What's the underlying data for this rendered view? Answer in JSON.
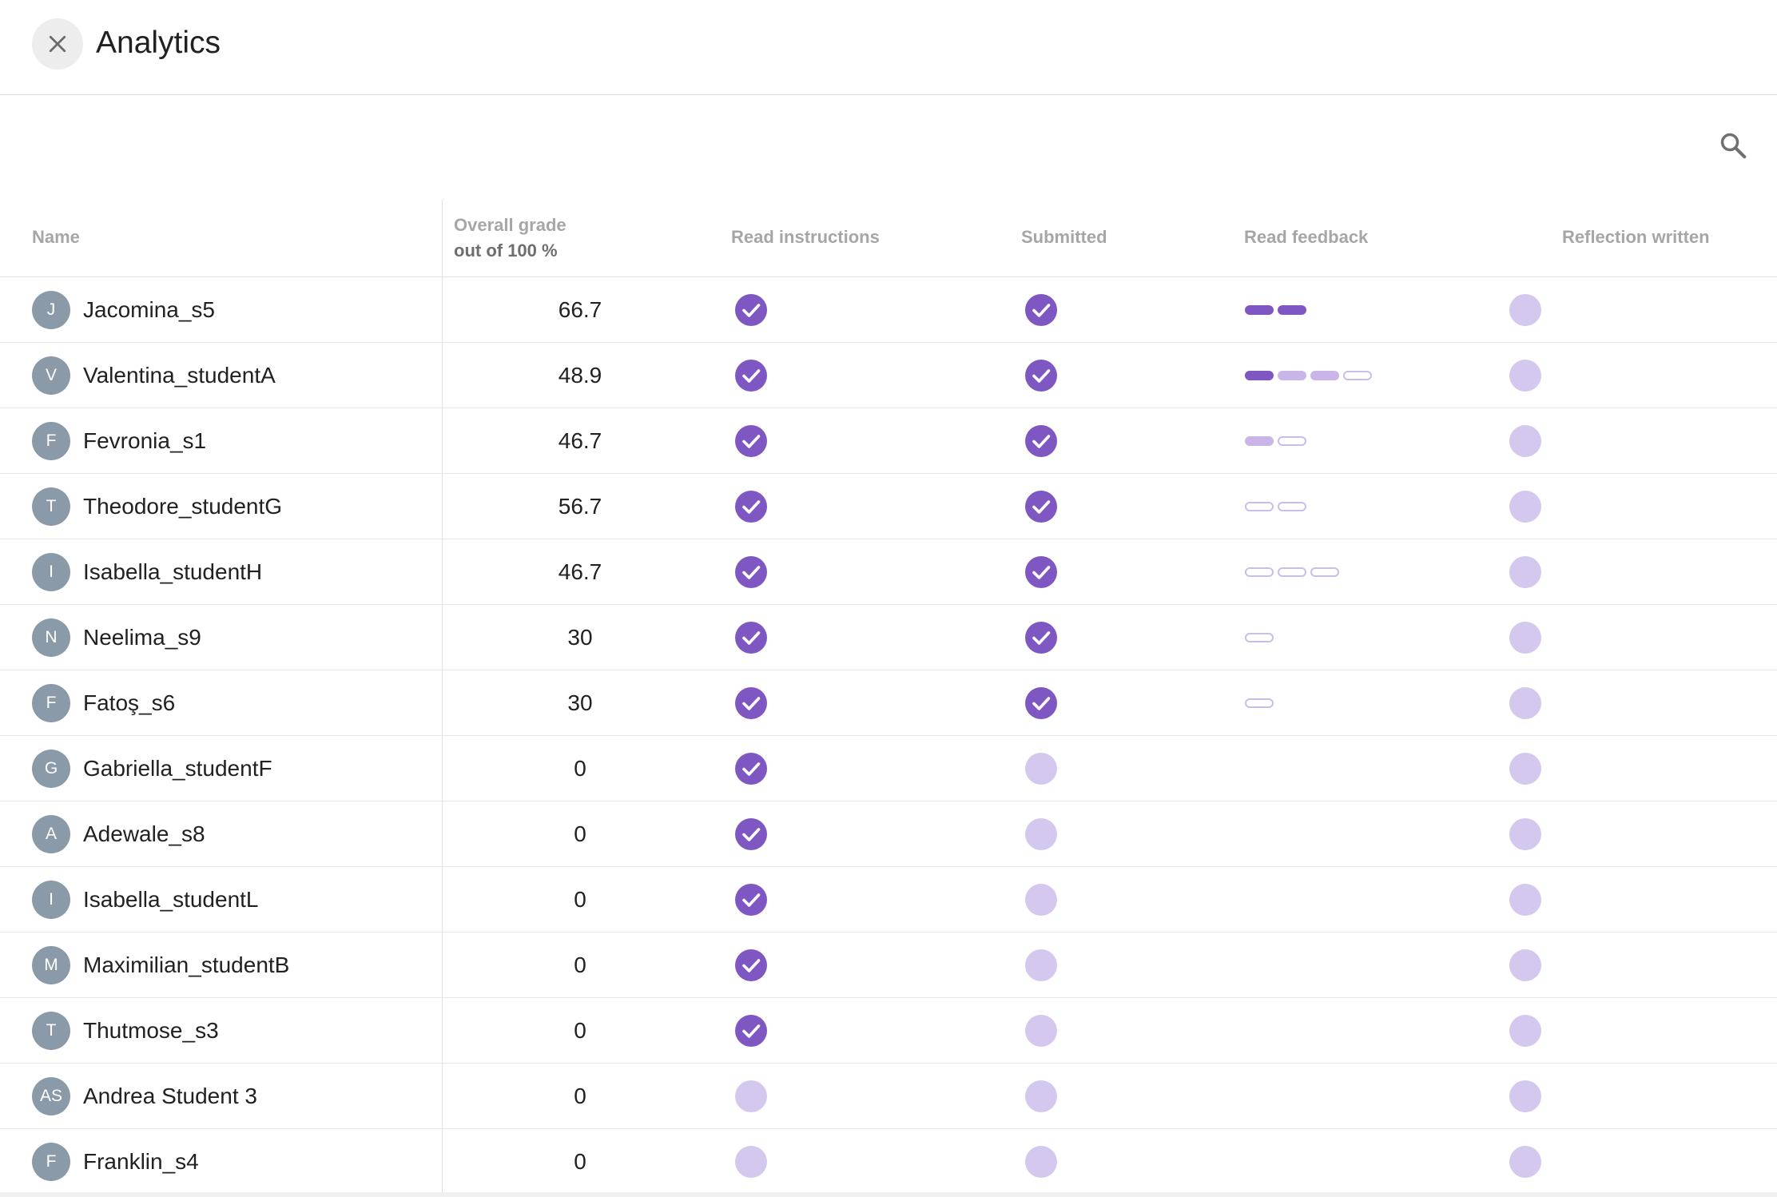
{
  "header": {
    "title": "Analytics",
    "close_icon": "close-icon"
  },
  "toolbar": {
    "search_icon": "search-icon"
  },
  "columns": {
    "name": "Name",
    "grade": "Overall grade",
    "grade_sub": "out of 100 %",
    "read_instructions": "Read instructions",
    "submitted": "Submitted",
    "read_feedback": "Read feedback",
    "reflection": "Reflection written"
  },
  "colors": {
    "accent": "#7e57c2",
    "pending": "#d5c8ee",
    "partial": "#c9b5e8",
    "avatar": "#8b9aa8"
  },
  "students": [
    {
      "initials": "J",
      "name": "Jacomina_s5",
      "grade": "66.7",
      "read": true,
      "submitted": true,
      "feedback": [
        "full",
        "full"
      ],
      "reflection": false
    },
    {
      "initials": "V",
      "name": "Valentina_studentA",
      "grade": "48.9",
      "read": true,
      "submitted": true,
      "feedback": [
        "full",
        "partial",
        "partial",
        "empty"
      ],
      "reflection": false
    },
    {
      "initials": "F",
      "name": "Fevronia_s1",
      "grade": "46.7",
      "read": true,
      "submitted": true,
      "feedback": [
        "partial",
        "empty"
      ],
      "reflection": false
    },
    {
      "initials": "T",
      "name": "Theodore_studentG",
      "grade": "56.7",
      "read": true,
      "submitted": true,
      "feedback": [
        "empty",
        "empty"
      ],
      "reflection": false
    },
    {
      "initials": "I",
      "name": "Isabella_studentH",
      "grade": "46.7",
      "read": true,
      "submitted": true,
      "feedback": [
        "empty",
        "empty",
        "empty"
      ],
      "reflection": false
    },
    {
      "initials": "N",
      "name": "Neelima_s9",
      "grade": "30",
      "read": true,
      "submitted": true,
      "feedback": [
        "empty"
      ],
      "reflection": false
    },
    {
      "initials": "F",
      "name": "Fatoş_s6",
      "grade": "30",
      "read": true,
      "submitted": true,
      "feedback": [
        "empty"
      ],
      "reflection": false
    },
    {
      "initials": "G",
      "name": "Gabriella_studentF",
      "grade": "0",
      "read": true,
      "submitted": false,
      "feedback": [],
      "reflection": false
    },
    {
      "initials": "A",
      "name": "Adewale_s8",
      "grade": "0",
      "read": true,
      "submitted": false,
      "feedback": [],
      "reflection": false
    },
    {
      "initials": "I",
      "name": "Isabella_studentL",
      "grade": "0",
      "read": true,
      "submitted": false,
      "feedback": [],
      "reflection": false
    },
    {
      "initials": "M",
      "name": "Maximilian_studentB",
      "grade": "0",
      "read": true,
      "submitted": false,
      "feedback": [],
      "reflection": false
    },
    {
      "initials": "T",
      "name": "Thutmose_s3",
      "grade": "0",
      "read": true,
      "submitted": false,
      "feedback": [],
      "reflection": false
    },
    {
      "initials": "AS",
      "name": "Andrea Student 3",
      "grade": "0",
      "read": false,
      "submitted": false,
      "feedback": [],
      "reflection": false
    },
    {
      "initials": "F",
      "name": "Franklin_s4",
      "grade": "0",
      "read": false,
      "submitted": false,
      "feedback": [],
      "reflection": false
    }
  ]
}
